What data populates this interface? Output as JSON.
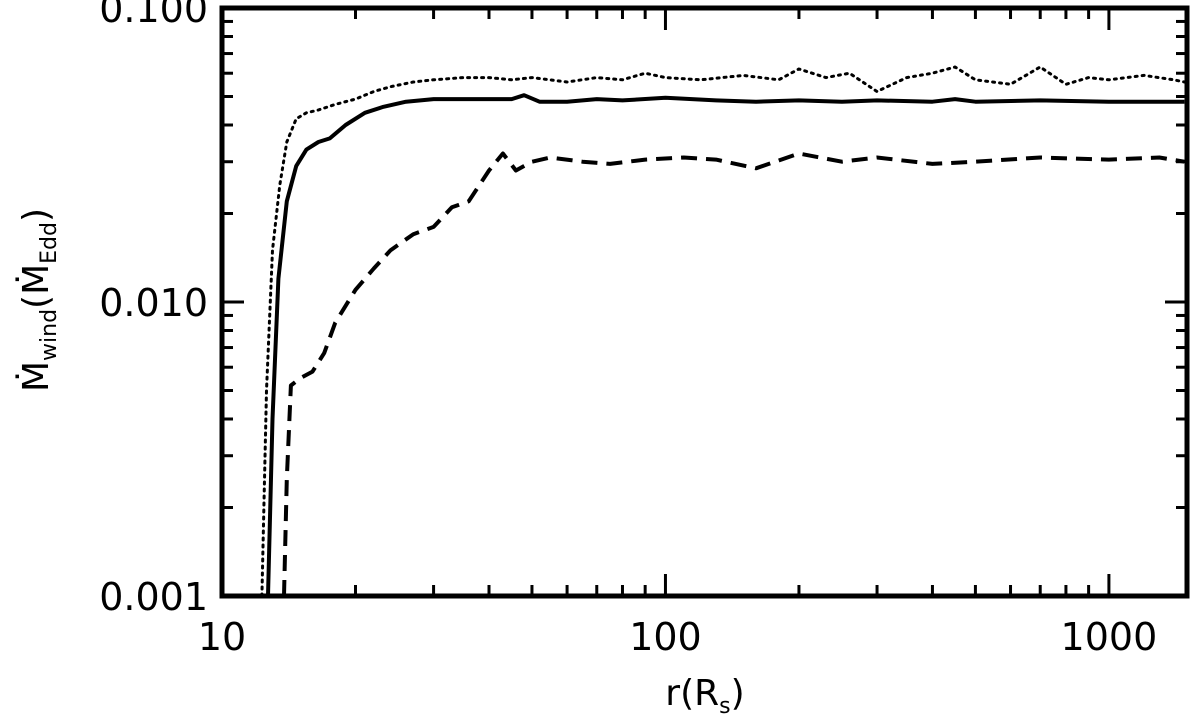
{
  "chart_data": {
    "type": "line",
    "title": "",
    "x_scale": "log",
    "y_scale": "log",
    "xlim": [
      10,
      1500
    ],
    "ylim": [
      0.001,
      0.1
    ],
    "grid": false,
    "legend": "none",
    "x_ticks": [
      {
        "value": 10,
        "label": "10"
      },
      {
        "value": 100,
        "label": "100"
      },
      {
        "value": 1000,
        "label": "1000"
      }
    ],
    "y_ticks": [
      {
        "value": 0.001,
        "label": "0.001"
      },
      {
        "value": 0.01,
        "label": "0.010"
      },
      {
        "value": 0.1,
        "label": "0.100"
      }
    ],
    "xlabel": {
      "main": "r",
      "paren_open": "(",
      "sym": "R",
      "sub": "s",
      "paren_close": ")"
    },
    "ylabel": {
      "main": "Ṁ",
      "sub": "wind",
      "paren_open": "(",
      "sym": "Ṁ",
      "sub2": "Edd",
      "paren_close": ")"
    },
    "series": [
      {
        "style": "solid",
        "x": [
          12.7,
          13.0,
          13.4,
          14.0,
          14.7,
          15.5,
          16.5,
          17.5,
          19.0,
          21.0,
          23.0,
          26.0,
          30.0,
          35.0,
          40.0,
          45.0,
          48.0,
          52.0,
          60.0,
          70.0,
          80.0,
          100.0,
          130.0,
          160.0,
          200.0,
          250.0,
          300.0,
          400.0,
          450.0,
          500.0,
          700.0,
          1000.0,
          1300.0,
          1480.0
        ],
        "y": [
          0.001,
          0.004,
          0.012,
          0.022,
          0.029,
          0.033,
          0.035,
          0.036,
          0.04,
          0.044,
          0.046,
          0.048,
          0.049,
          0.049,
          0.049,
          0.049,
          0.0505,
          0.048,
          0.048,
          0.049,
          0.0485,
          0.0495,
          0.0485,
          0.048,
          0.0485,
          0.048,
          0.0485,
          0.048,
          0.049,
          0.048,
          0.0485,
          0.048,
          0.048,
          0.048
        ]
      },
      {
        "style": "dashed",
        "x": [
          13.8,
          14.0,
          14.3,
          15.0,
          16.0,
          17.0,
          18.0,
          20.0,
          22.0,
          24.0,
          27.0,
          30.0,
          33.0,
          36.0,
          40.0,
          43.0,
          46.0,
          50.0,
          55.0,
          65.0,
          75.0,
          90.0,
          110.0,
          130.0,
          160.0,
          200.0,
          250.0,
          300.0,
          400.0,
          500.0,
          700.0,
          1000.0,
          1300.0,
          1480.0
        ],
        "y": [
          0.001,
          0.0025,
          0.0052,
          0.0055,
          0.0058,
          0.0067,
          0.0085,
          0.011,
          0.013,
          0.015,
          0.017,
          0.018,
          0.021,
          0.022,
          0.028,
          0.032,
          0.028,
          0.03,
          0.031,
          0.03,
          0.0295,
          0.0305,
          0.031,
          0.0305,
          0.0285,
          0.032,
          0.03,
          0.031,
          0.0295,
          0.03,
          0.031,
          0.0305,
          0.031,
          0.03
        ]
      },
      {
        "style": "dotted",
        "x": [
          12.3,
          12.6,
          13.0,
          13.5,
          14.0,
          14.7,
          15.5,
          16.5,
          18.0,
          20.0,
          22.0,
          24.0,
          27.0,
          30.0,
          35.0,
          40.0,
          45.0,
          50.0,
          60.0,
          70.0,
          80.0,
          90.0,
          100.0,
          120.0,
          150.0,
          180.0,
          200.0,
          230.0,
          260.0,
          300.0,
          350.0,
          400.0,
          450.0,
          500.0,
          600.0,
          700.0,
          800.0,
          900.0,
          1000.0,
          1200.0,
          1400.0,
          1480.0
        ],
        "y": [
          0.001,
          0.005,
          0.015,
          0.025,
          0.035,
          0.042,
          0.044,
          0.045,
          0.047,
          0.049,
          0.052,
          0.054,
          0.056,
          0.057,
          0.058,
          0.058,
          0.057,
          0.058,
          0.056,
          0.058,
          0.057,
          0.06,
          0.058,
          0.057,
          0.059,
          0.057,
          0.062,
          0.058,
          0.06,
          0.052,
          0.058,
          0.06,
          0.063,
          0.057,
          0.055,
          0.063,
          0.055,
          0.058,
          0.057,
          0.059,
          0.057,
          0.056
        ]
      }
    ]
  }
}
